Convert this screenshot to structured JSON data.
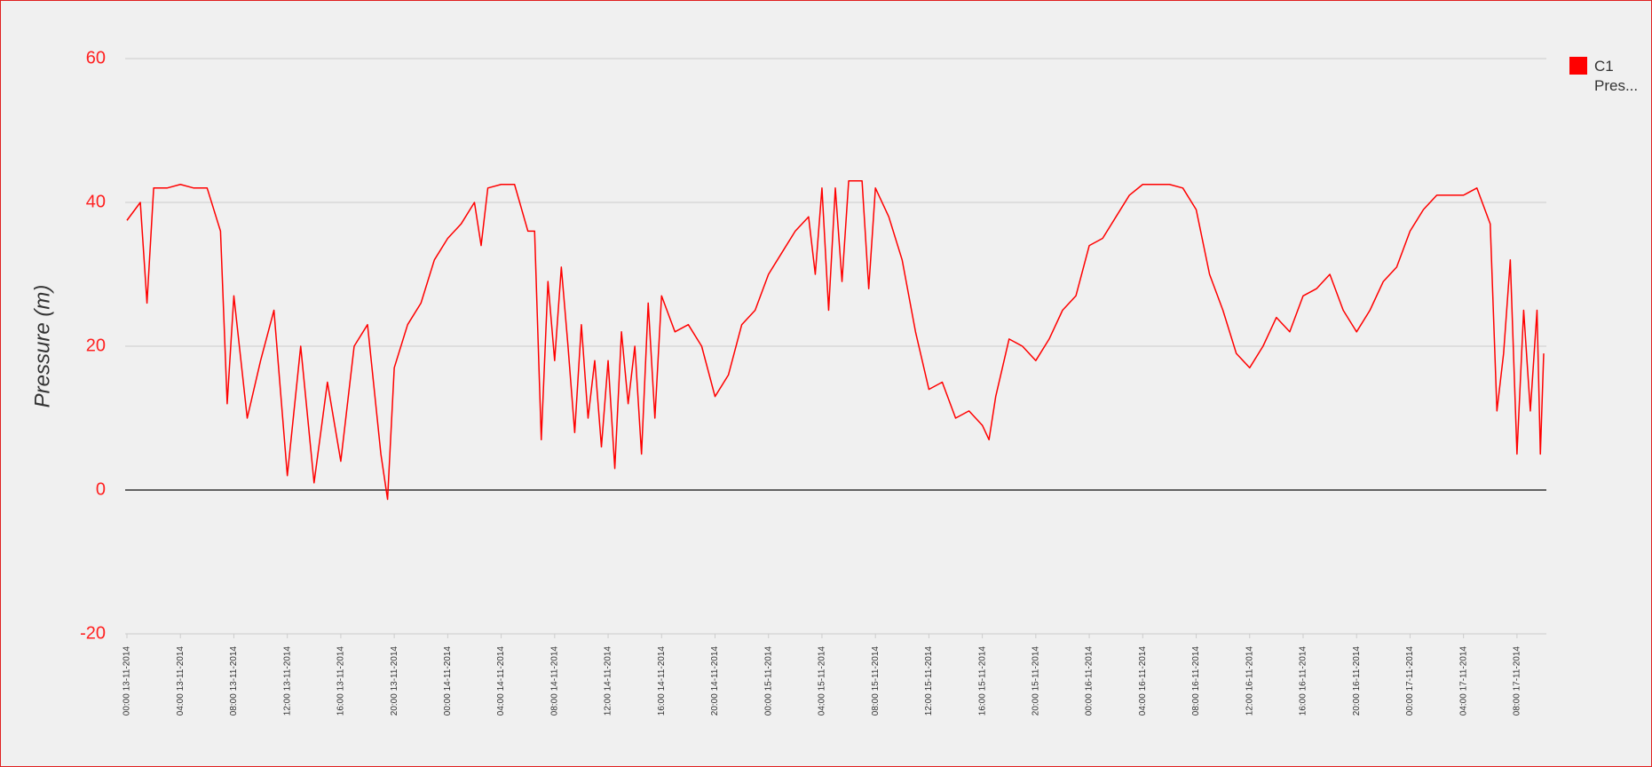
{
  "chart_data": {
    "type": "line",
    "y_label": "Pressure (m)",
    "x": [
      "00:00 13-11-2014",
      "01:00 13-11-2014",
      "01:30 13-11-2014",
      "02:00 13-11-2014",
      "03:00 13-11-2014",
      "04:00 13-11-2014",
      "05:00 13-11-2014",
      "06:00 13-11-2014",
      "07:00 13-11-2014",
      "07:30 13-11-2014",
      "08:00 13-11-2014",
      "09:00 13-11-2014",
      "10:00 13-11-2014",
      "11:00 13-11-2014",
      "12:00 13-11-2014",
      "13:00 13-11-2014",
      "14:00 13-11-2014",
      "15:00 13-11-2014",
      "16:00 13-11-2014",
      "17:00 13-11-2014",
      "18:00 13-11-2014",
      "19:00 13-11-2014",
      "19:30 13-11-2014",
      "20:00 13-11-2014",
      "21:00 13-11-2014",
      "22:00 13-11-2014",
      "23:00 13-11-2014",
      "00:00 14-11-2014",
      "01:00 14-11-2014",
      "02:00 14-11-2014",
      "02:30 14-11-2014",
      "03:00 14-11-2014",
      "04:00 14-11-2014",
      "05:00 14-11-2014",
      "06:00 14-11-2014",
      "06:30 14-11-2014",
      "07:00 14-11-2014",
      "07:30 14-11-2014",
      "08:00 14-11-2014",
      "08:30 14-11-2014",
      "09:00 14-11-2014",
      "09:30 14-11-2014",
      "10:00 14-11-2014",
      "10:30 14-11-2014",
      "11:00 14-11-2014",
      "11:30 14-11-2014",
      "12:00 14-11-2014",
      "12:30 14-11-2014",
      "13:00 14-11-2014",
      "13:30 14-11-2014",
      "14:00 14-11-2014",
      "14:30 14-11-2014",
      "15:00 14-11-2014",
      "15:30 14-11-2014",
      "16:00 14-11-2014",
      "17:00 14-11-2014",
      "18:00 14-11-2014",
      "19:00 14-11-2014",
      "20:00 14-11-2014",
      "21:00 14-11-2014",
      "22:00 14-11-2014",
      "23:00 14-11-2014",
      "00:00 15-11-2014",
      "01:00 15-11-2014",
      "02:00 15-11-2014",
      "03:00 15-11-2014",
      "03:30 15-11-2014",
      "04:00 15-11-2014",
      "04:30 15-11-2014",
      "05:00 15-11-2014",
      "05:30 15-11-2014",
      "06:00 15-11-2014",
      "07:00 15-11-2014",
      "07:30 15-11-2014",
      "08:00 15-11-2014",
      "09:00 15-11-2014",
      "10:00 15-11-2014",
      "11:00 15-11-2014",
      "12:00 15-11-2014",
      "13:00 15-11-2014",
      "14:00 15-11-2014",
      "15:00 15-11-2014",
      "16:00 15-11-2014",
      "16:30 15-11-2014",
      "17:00 15-11-2014",
      "18:00 15-11-2014",
      "19:00 15-11-2014",
      "20:00 15-11-2014",
      "21:00 15-11-2014",
      "22:00 15-11-2014",
      "23:00 15-11-2014",
      "00:00 16-11-2014",
      "01:00 16-11-2014",
      "02:00 16-11-2014",
      "03:00 16-11-2014",
      "04:00 16-11-2014",
      "05:00 16-11-2014",
      "06:00 16-11-2014",
      "07:00 16-11-2014",
      "08:00 16-11-2014",
      "09:00 16-11-2014",
      "10:00 16-11-2014",
      "11:00 16-11-2014",
      "12:00 16-11-2014",
      "13:00 16-11-2014",
      "14:00 16-11-2014",
      "15:00 16-11-2014",
      "16:00 16-11-2014",
      "17:00 16-11-2014",
      "18:00 16-11-2014",
      "19:00 16-11-2014",
      "20:00 16-11-2014",
      "21:00 16-11-2014",
      "22:00 16-11-2014",
      "23:00 16-11-2014",
      "00:00 17-11-2014",
      "01:00 17-11-2014",
      "02:00 17-11-2014",
      "03:00 17-11-2014",
      "04:00 17-11-2014",
      "05:00 17-11-2014",
      "06:00 17-11-2014",
      "06:30 17-11-2014",
      "07:00 17-11-2014",
      "07:30 17-11-2014",
      "08:00 17-11-2014",
      "08:30 17-11-2014",
      "09:00 17-11-2014",
      "09:30 17-11-2014",
      "09:45 17-11-2014",
      "10:00 17-11-2014"
    ],
    "series": [
      {
        "name": "C1 Pres...",
        "color": "#ff0000",
        "values": [
          37.5,
          40,
          26,
          42,
          42,
          42.5,
          42,
          42,
          36,
          12,
          27,
          10,
          18,
          25,
          2,
          20,
          1,
          15,
          4,
          20,
          23,
          5,
          -1.3,
          17,
          23,
          26,
          32,
          35,
          37,
          40,
          34,
          42,
          42.5,
          42.5,
          36,
          36,
          7,
          29,
          18,
          31,
          20,
          8,
          23,
          10,
          18,
          6,
          18,
          3,
          22,
          12,
          20,
          5,
          26,
          10,
          27,
          22,
          23,
          20,
          13,
          16,
          23,
          25,
          30,
          33,
          36,
          38,
          30,
          42,
          25,
          42,
          29,
          43,
          43,
          28,
          42,
          38,
          32,
          22,
          14,
          15,
          10,
          11,
          9,
          7,
          13,
          21,
          20,
          18,
          21,
          25,
          27,
          34,
          35,
          38,
          41,
          42.5,
          42.5,
          42.5,
          42,
          39,
          30,
          25,
          19,
          17,
          20,
          24,
          22,
          27,
          28,
          30,
          25,
          22,
          25,
          29,
          31,
          36,
          39,
          41,
          41,
          41,
          42,
          37,
          11,
          19,
          32,
          5,
          25,
          11,
          25,
          5,
          19
        ]
      }
    ],
    "xlim": [
      "00:00 13-11-2014",
      "10:00 17-11-2014"
    ],
    "xticks": [
      "00:00 13-11-2014",
      "04:00 13-11-2014",
      "08:00 13-11-2014",
      "12:00 13-11-2014",
      "16:00 13-11-2014",
      "20:00 13-11-2014",
      "00:00 14-11-2014",
      "04:00 14-11-2014",
      "08:00 14-11-2014",
      "12:00 14-11-2014",
      "16:00 14-11-2014",
      "20:00 14-11-2014",
      "00:00 15-11-2014",
      "04:00 15-11-2014",
      "08:00 15-11-2014",
      "12:00 15-11-2014",
      "16:00 15-11-2014",
      "20:00 15-11-2014",
      "00:00 16-11-2014",
      "04:00 16-11-2014",
      "08:00 16-11-2014",
      "12:00 16-11-2014",
      "16:00 16-11-2014",
      "20:00 16-11-2014",
      "00:00 17-11-2014",
      "04:00 17-11-2014",
      "08:00 17-11-2014"
    ],
    "ylim": [
      -20,
      60
    ],
    "yticks": [
      -20,
      0,
      20,
      40,
      60
    ],
    "grid": true,
    "legend": "right"
  }
}
